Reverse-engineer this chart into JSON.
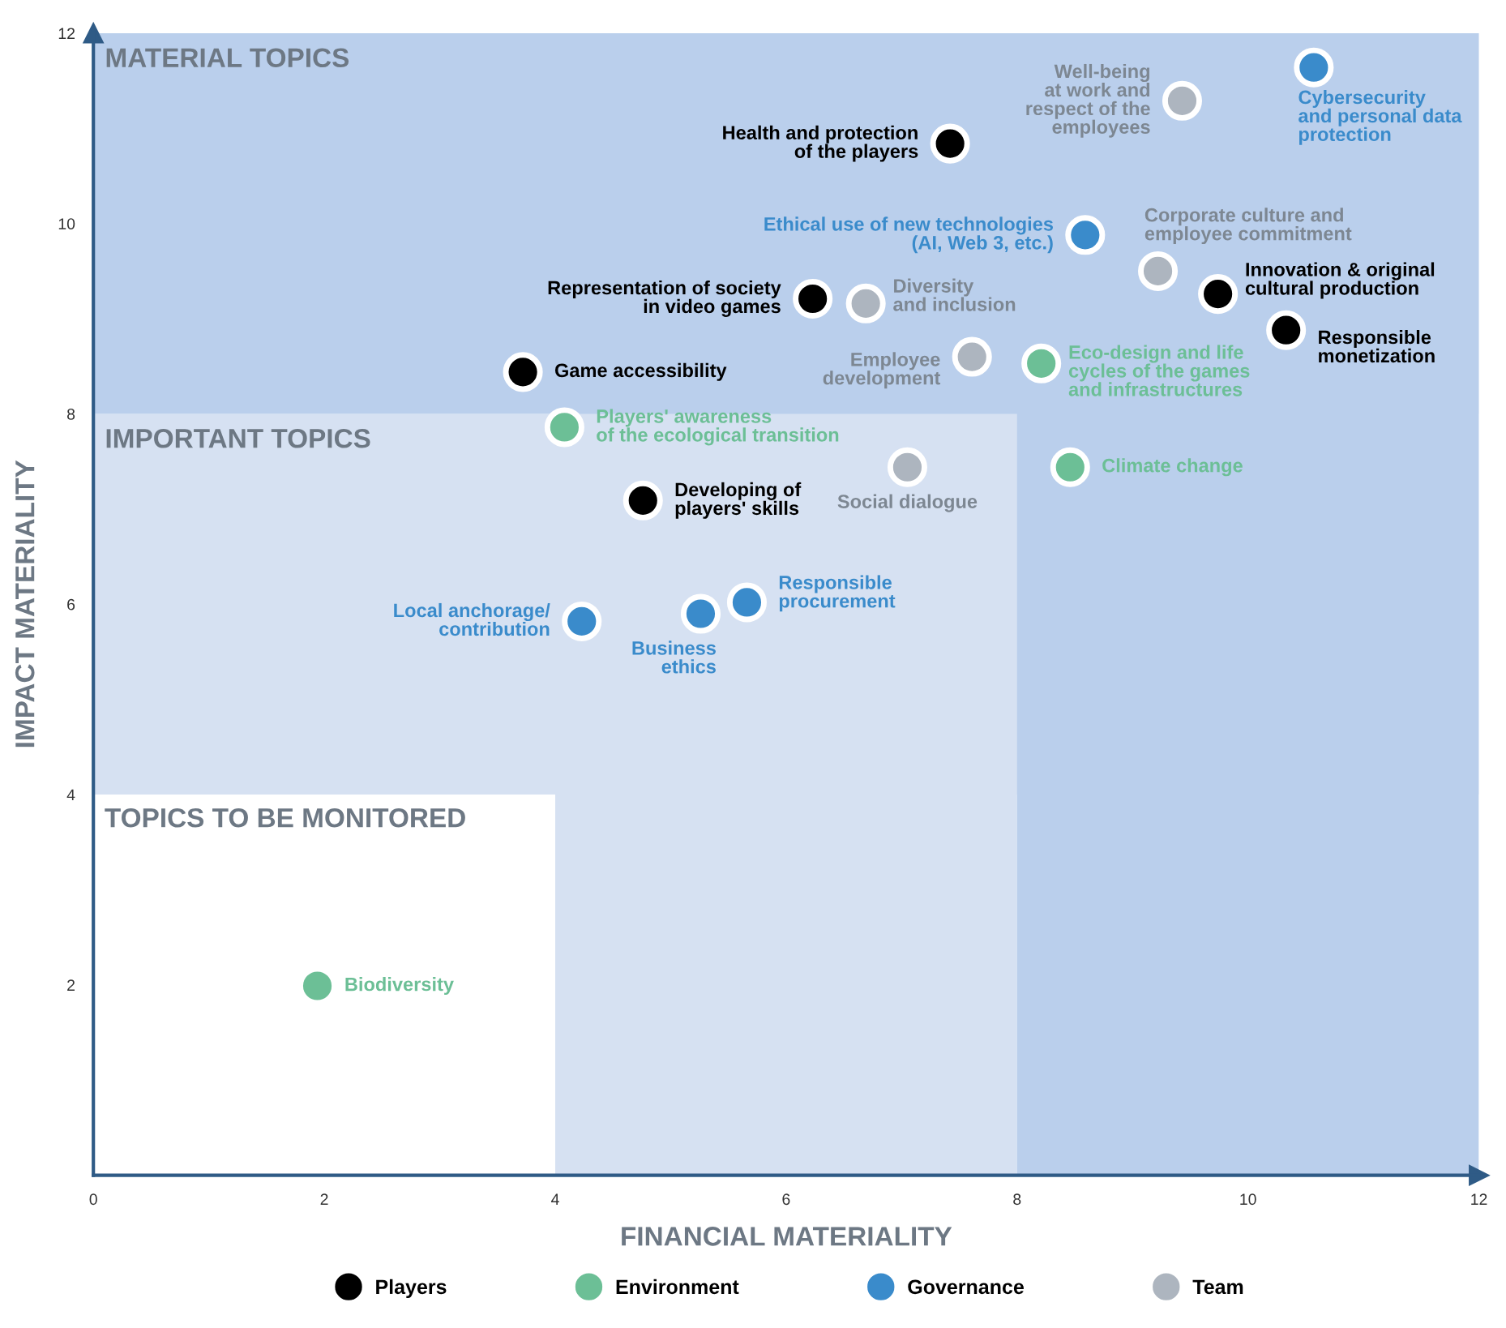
{
  "chart_data": {
    "type": "scatter",
    "xlabel": "FINANCIAL MATERIALITY",
    "ylabel": "IMPACT MATERIALITY",
    "xlim": [
      0,
      12
    ],
    "ylim": [
      0,
      12
    ],
    "xticks": [
      0,
      2,
      4,
      6,
      8,
      10,
      12
    ],
    "yticks": [
      2,
      4,
      6,
      8,
      10,
      12
    ],
    "grid": false,
    "legend": "bottom",
    "marker": "circle",
    "annotations": [
      "TOPICS TO BE MONITORED"
    ],
    "bands": [
      {
        "axis": "y",
        "from": 4,
        "to": 8,
        "label": "IMPORTANT TOPICS",
        "color": "#d6e1f2"
      },
      {
        "axis": "x",
        "from": 4,
        "to": 8,
        "color": "#d6e1f2"
      },
      {
        "axis": "y",
        "from": 8,
        "to": 12,
        "label": "MATERIAL TOPICS",
        "color": "#bacfec"
      },
      {
        "axis": "x",
        "from": 8,
        "to": 12,
        "color": "#bacfec"
      }
    ],
    "series": [
      {
        "name": "Players",
        "color": "#000000",
        "x": [
          7.42,
          6.23,
          3.72,
          4.76,
          9.74,
          10.33
        ],
        "values": [
          10.84,
          9.21,
          8.44,
          7.09,
          9.26,
          8.88
        ],
        "value_labels": [
          "Health and protection\nof the players",
          "Representation of society\nin video games",
          "Game accessibility",
          "Developing of\nplayers' skills",
          "Innovation & original\ncultural production",
          "Responsible\nmonetization"
        ]
      },
      {
        "name": "Environment",
        "color": "#6cbf96",
        "x": [
          4.08,
          8.21,
          8.46,
          1.94
        ],
        "values": [
          7.86,
          8.53,
          7.44,
          1.99
        ],
        "value_labels": [
          "Players' awareness\nof the ecological transition",
          "Eco-design and life\ncycles of the games\nand infrastructures",
          "Climate change",
          "Biodiversity"
        ]
      },
      {
        "name": "Governance",
        "color": "#3a8bcb",
        "x": [
          10.57,
          8.59,
          4.23,
          5.26,
          5.66
        ],
        "values": [
          11.64,
          9.88,
          5.82,
          5.9,
          6.02
        ],
        "value_labels": [
          "Cybersecurity\nand personal data\nprotection",
          "Ethical use of new technologies\n(AI, Web 3, etc.)",
          "Local anchorage/\ncontribution",
          "Business\nethics",
          "Responsible\nprocurement"
        ]
      },
      {
        "name": "Team",
        "color": "#adb5bf",
        "x": [
          9.43,
          9.22,
          6.69,
          7.61,
          7.05
        ],
        "values": [
          11.29,
          9.5,
          9.16,
          8.6,
          7.44
        ],
        "value_labels": [
          "Well-being\nat work and\nrespect of the\nemployees",
          "Corporate culture and\nemployee commitment",
          "Diversity\nand inclusion",
          "Employee\ndevelopment",
          "Social dialogue"
        ]
      }
    ]
  }
}
